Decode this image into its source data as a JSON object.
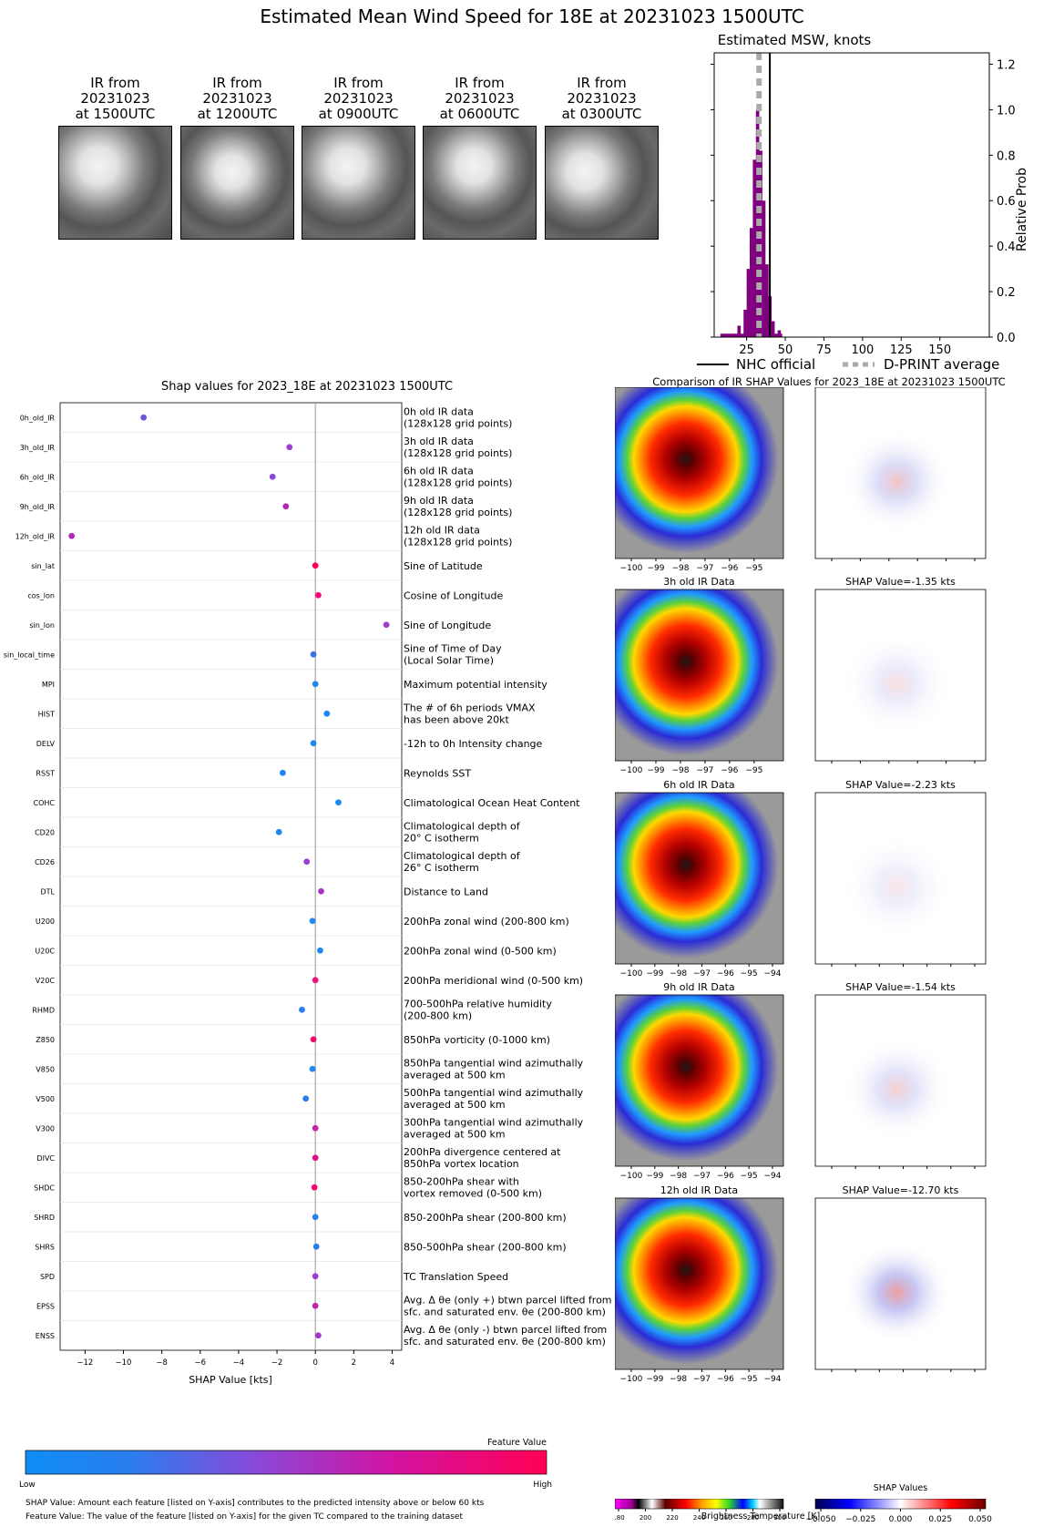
{
  "title": "Estimated Mean Wind Speed for 18E at 20231023 1500UTC",
  "ir_thumbnails": [
    {
      "line1": "IR from",
      "line2": "20231023",
      "line3": "at 1500UTC"
    },
    {
      "line1": "IR from",
      "line2": "20231023",
      "line3": "at 1200UTC"
    },
    {
      "line1": "IR from",
      "line2": "20231023",
      "line3": "at 0900UTC"
    },
    {
      "line1": "IR from",
      "line2": "20231023",
      "line3": "at 0600UTC"
    },
    {
      "line1": "IR from",
      "line2": "20231023",
      "line3": "at 0300UTC"
    }
  ],
  "histogram": {
    "title": "Estimated MSW, knots",
    "ylabel": "Relative Prob",
    "xticks": [
      "25",
      "50",
      "75",
      "100",
      "125",
      "150"
    ],
    "yticks": [
      "0.0",
      "0.2",
      "0.4",
      "0.6",
      "0.8",
      "1.0",
      "1.2"
    ],
    "legend_nhc": "NHC official",
    "legend_dprint": "D-PRINT average",
    "nhc_value": 40,
    "dprint_value": 33,
    "color": "#800080"
  },
  "shap": {
    "title": "Shap values for 2023_18E at 20231023 1500UTC",
    "xlabel": "SHAP Value [kts]",
    "xticks": [
      "−12",
      "−10",
      "−8",
      "−6",
      "−4",
      "−2",
      "0",
      "2",
      "4"
    ],
    "xtick_values": [
      -12,
      -10,
      -8,
      -6,
      -4,
      -2,
      0,
      2,
      4
    ],
    "xrange": [
      -13.3,
      4.5
    ]
  },
  "chart_data": {
    "type": "scatter",
    "title": "Shap values for 2023_18E at 20231023 1500UTC",
    "xlabel": "SHAP Value [kts]",
    "features": [
      {
        "name": "0h_old_IR",
        "shap": -8.95,
        "color": "#6a55dd",
        "desc1": "0h old IR data",
        "desc2": "(128x128 grid points)"
      },
      {
        "name": "3h_old_IR",
        "shap": -1.35,
        "color": "#9b3fd1",
        "desc1": "3h old IR data",
        "desc2": "(128x128 grid points)"
      },
      {
        "name": "6h_old_IR",
        "shap": -2.23,
        "color": "#8648d9",
        "desc1": "6h old IR data",
        "desc2": "(128x128 grid points)"
      },
      {
        "name": "9h_old_IR",
        "shap": -1.54,
        "color": "#b326b6",
        "desc1": "9h old IR data",
        "desc2": "(128x128 grid points)"
      },
      {
        "name": "12h_old_IR",
        "shap": -12.7,
        "color": "#b329bc",
        "desc1": "12h old IR data",
        "desc2": "(128x128 grid points)"
      },
      {
        "name": "sin_lat",
        "shap": 0.0,
        "color": "#ff0058",
        "desc1": "Sine of Latitude",
        "desc2": ""
      },
      {
        "name": "cos_lon",
        "shap": 0.15,
        "color": "#f20877",
        "desc1": "Cosine of Longitude",
        "desc2": ""
      },
      {
        "name": "sin_lon",
        "shap": 3.7,
        "color": "#9e3dcc",
        "desc1": "Sine of Longitude",
        "desc2": ""
      },
      {
        "name": "sin_local_time",
        "shap": -0.1,
        "color": "#3c6ee8",
        "desc1": "Sine of Time of Day",
        "desc2": "(Local Solar Time)"
      },
      {
        "name": "MPI",
        "shap": 0.0,
        "color": "#1f86f0",
        "desc1": "Maximum potential intensity",
        "desc2": ""
      },
      {
        "name": "HIST",
        "shap": 0.6,
        "color": "#1d88f2",
        "desc1": "The # of 6h periods VMAX",
        "desc2": "has been above 20kt"
      },
      {
        "name": "DELV",
        "shap": -0.1,
        "color": "#1d88f2",
        "desc1": "-12h to 0h Intensity change",
        "desc2": ""
      },
      {
        "name": "RSST",
        "shap": -1.7,
        "color": "#1f86f0",
        "desc1": "Reynolds SST",
        "desc2": ""
      },
      {
        "name": "COHC",
        "shap": 1.2,
        "color": "#1d88f2",
        "desc1": "Climatological Ocean Heat Content",
        "desc2": ""
      },
      {
        "name": "CD20",
        "shap": -1.9,
        "color": "#1f86f0",
        "desc1": "Climatological depth of",
        "desc2": "20° C isotherm"
      },
      {
        "name": "CD26",
        "shap": -0.45,
        "color": "#9b3fd1",
        "desc1": "Climatological depth of",
        "desc2": "26° C isotherm"
      },
      {
        "name": "DTL",
        "shap": 0.3,
        "color": "#a535c8",
        "desc1": "Distance to Land",
        "desc2": ""
      },
      {
        "name": "U200",
        "shap": -0.15,
        "color": "#1d88f2",
        "desc1": "200hPa zonal wind (200-800 km)",
        "desc2": ""
      },
      {
        "name": "U20C",
        "shap": 0.25,
        "color": "#1d88f2",
        "desc1": "200hPa zonal wind (0-500 km)",
        "desc2": ""
      },
      {
        "name": "V20C",
        "shap": 0.0,
        "color": "#f0107a",
        "desc1": "200hPa meridional wind (0-500 km)",
        "desc2": ""
      },
      {
        "name": "RHMD",
        "shap": -0.7,
        "color": "#2a7eee",
        "desc1": "700-500hPa relative humidity",
        "desc2": "(200-800 km)"
      },
      {
        "name": "Z850",
        "shap": -0.1,
        "color": "#f2086d",
        "desc1": "850hPa vorticity (0-1000 km)",
        "desc2": ""
      },
      {
        "name": "V850",
        "shap": -0.15,
        "color": "#1d88f2",
        "desc1": "850hPa tangential wind azimuthally",
        "desc2": "averaged at 500 km"
      },
      {
        "name": "V500",
        "shap": -0.5,
        "color": "#2a7eee",
        "desc1": "500hPa tangential wind azimuthally",
        "desc2": "averaged at 500 km"
      },
      {
        "name": "V300",
        "shap": 0.0,
        "color": "#c524a8",
        "desc1": "300hPa tangential wind azimuthally",
        "desc2": "averaged at 500 km"
      },
      {
        "name": "DIVC",
        "shap": 0.0,
        "color": "#e00e89",
        "desc1": "200hPa divergence centered at",
        "desc2": "850hPa vortex location"
      },
      {
        "name": "SHDC",
        "shap": -0.05,
        "color": "#f2086d",
        "desc1": "850-200hPa shear with",
        "desc2": "vortex removed (0-500 km)"
      },
      {
        "name": "SHRD",
        "shap": 0.0,
        "color": "#2a7eee",
        "desc1": "850-200hPa shear (200-800 km)",
        "desc2": ""
      },
      {
        "name": "SHRS",
        "shap": 0.05,
        "color": "#2a7eee",
        "desc1": "850-500hPa shear (200-800 km)",
        "desc2": ""
      },
      {
        "name": "SPD",
        "shap": 0.0,
        "color": "#9b3fd1",
        "desc1": "TC Translation Speed",
        "desc2": ""
      },
      {
        "name": "EPSS",
        "shap": 0.0,
        "color": "#c524a8",
        "desc1": "Avg. Δ θe (only +) btwn parcel lifted from",
        "desc2": "sfc. and saturated env. θe (200-800 km)"
      },
      {
        "name": "ENSS",
        "shap": 0.15,
        "color": "#a535c8",
        "desc1": "Avg. Δ θe (only -) btwn parcel lifted from",
        "desc2": "sfc. and saturated env. θe (200-800 km)"
      }
    ]
  },
  "colorbar": {
    "label": "Feature Value",
    "low": "Low",
    "high": "High"
  },
  "footnotes": {
    "line1": "SHAP Value: Amount each feature [listed on Y-axis] contributes to the predicted intensity above or below 60 kts",
    "line2": "Feature Value: The value of the feature [listed on Y-axis] for the given TC compared to the training dataset"
  },
  "comparison": {
    "title": "Comparison of IR SHAP Values for 2023_18E at 20231023 1500UTC",
    "panels": [
      {
        "ir_title": "0h old IR Data",
        "shap_title": "SHAP Value=-8.95 kts",
        "yticks": [
          "14",
          "13",
          "12",
          "11",
          "10",
          "9"
        ],
        "xticks": [
          "−100",
          "−99",
          "−98",
          "−97",
          "−96",
          "−95"
        ]
      },
      {
        "ir_title": "3h old IR Data",
        "shap_title": "SHAP Value=-1.35 kts",
        "yticks": [
          "14",
          "13",
          "12",
          "11",
          "10",
          "9"
        ],
        "xticks": [
          "−100",
          "−99",
          "−98",
          "−97",
          "−96",
          "−95"
        ]
      },
      {
        "ir_title": "6h old IR Data",
        "shap_title": "SHAP Value=-2.23 kts",
        "yticks": [
          "14",
          "13",
          "12",
          "11",
          "10",
          "9"
        ],
        "xticks": [
          "−100",
          "−99",
          "−98",
          "−97",
          "−96",
          "−95",
          "−94"
        ]
      },
      {
        "ir_title": "9h old IR Data",
        "shap_title": "SHAP Value=-1.54 kts",
        "yticks": [
          "14",
          "13",
          "12",
          "11",
          "10",
          "9"
        ],
        "xticks": [
          "−100",
          "−99",
          "−98",
          "−97",
          "−96",
          "−95",
          "−94"
        ]
      },
      {
        "ir_title": "12h old IR Data",
        "shap_title": "SHAP Value=-12.70 kts",
        "yticks": [
          "14",
          "13",
          "12",
          "11",
          "10",
          "9",
          "8"
        ],
        "xticks": [
          "−100",
          "−99",
          "−98",
          "−97",
          "−96",
          "−95",
          "−94"
        ]
      }
    ],
    "bt_colorbar_label": "Brightness Temperature [K]",
    "bt_ticks": [
      "180",
      "200",
      "220",
      "240",
      "260",
      "280",
      "300"
    ],
    "shap_colorbar_label": "SHAP Values",
    "shap_ticks": [
      "−0.050",
      "−0.025",
      "0.000",
      "0.025",
      "0.050"
    ]
  }
}
